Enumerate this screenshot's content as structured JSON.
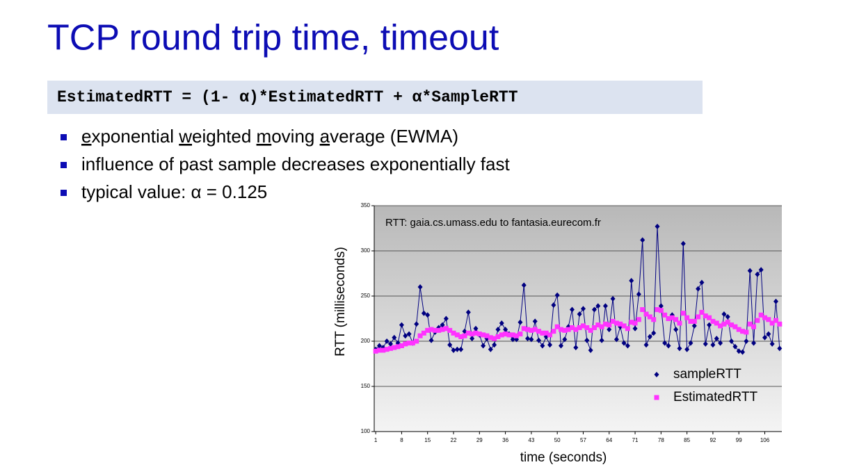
{
  "slide": {
    "title": "TCP round trip time, timeout",
    "formula": "EstimatedRTT = (1- α)*EstimatedRTT + α*SampleRTT",
    "bullets": [
      {
        "parts": [
          "e",
          "xponential ",
          "w",
          "eighted ",
          "m",
          "oving ",
          "a",
          "verage (EWMA)"
        ]
      },
      {
        "parts": [
          "influence of past sample decreases exponentially fast"
        ]
      },
      {
        "parts": [
          "typical value: α = 0.125"
        ]
      }
    ]
  },
  "chart_data": {
    "type": "line",
    "annotation": "RTT: gaia.cs.umass.edu to fantasia.eurecom.fr",
    "x_label": "time (seconds)",
    "y_label": "RTT (milliseconds)",
    "x": [
      1,
      2,
      3,
      4,
      5,
      6,
      7,
      8,
      9,
      10,
      11,
      12,
      13,
      14,
      15,
      16,
      17,
      18,
      19,
      20,
      21,
      22,
      23,
      24,
      25,
      26,
      27,
      28,
      29,
      30,
      31,
      32,
      33,
      34,
      35,
      36,
      37,
      38,
      39,
      40,
      41,
      42,
      43,
      44,
      45,
      46,
      47,
      48,
      49,
      50,
      51,
      52,
      53,
      54,
      55,
      56,
      57,
      58,
      59,
      60,
      61,
      62,
      63,
      64,
      65,
      66,
      67,
      68,
      69,
      70,
      71,
      72,
      73,
      74,
      75,
      76,
      77,
      78,
      79,
      80,
      81,
      82,
      83,
      84,
      85,
      86,
      87,
      88,
      89,
      90,
      91,
      92,
      93,
      94,
      95,
      96,
      97,
      98,
      99,
      100,
      101,
      102,
      103,
      104,
      105,
      106,
      107,
      108,
      109,
      110
    ],
    "xlim": [
      0.6,
      110.6
    ],
    "xticks": [
      1,
      8,
      15,
      22,
      29,
      36,
      43,
      50,
      57,
      64,
      71,
      78,
      85,
      92,
      99,
      106
    ],
    "ylim": [
      100,
      350
    ],
    "yticks": [
      100,
      150,
      200,
      250,
      300,
      350
    ],
    "grid": true,
    "legend": "lower right",
    "series": [
      {
        "name": "sampleRTT",
        "color": "#000080",
        "marker": "diamond",
        "values": [
          191,
          195,
          193,
          200,
          197,
          204,
          198,
          218,
          206,
          208,
          198,
          219,
          260,
          231,
          229,
          201,
          210,
          215,
          218,
          225,
          196,
          190,
          191,
          191,
          211,
          232,
          203,
          214,
          207,
          195,
          203,
          191,
          196,
          213,
          220,
          213,
          208,
          202,
          202,
          221,
          262,
          203,
          202,
          222,
          201,
          195,
          205,
          196,
          240,
          251,
          195,
          202,
          216,
          235,
          193,
          230,
          236,
          201,
          190,
          235,
          239,
          201,
          239,
          213,
          247,
          202,
          216,
          198,
          195,
          267,
          214,
          252,
          312,
          196,
          205,
          209,
          327,
          239,
          198,
          195,
          229,
          213,
          192,
          308,
          191,
          198,
          217,
          258,
          265,
          197,
          218,
          196,
          203,
          198,
          230,
          227,
          200,
          194,
          189,
          188,
          200,
          278,
          198,
          274,
          279,
          204,
          208,
          197,
          244,
          192
        ]
      },
      {
        "name": "EstimatedRTT",
        "color": "#ff33ff",
        "marker": "square",
        "values": [
          189,
          190,
          190,
          191,
          192,
          193,
          194,
          195,
          197,
          198,
          198,
          200,
          206,
          209,
          212,
          213,
          212,
          212,
          213,
          214,
          212,
          209,
          207,
          205,
          206,
          209,
          208,
          209,
          208,
          207,
          206,
          204,
          203,
          205,
          207,
          208,
          207,
          207,
          206,
          208,
          214,
          213,
          212,
          213,
          211,
          209,
          209,
          207,
          211,
          216,
          213,
          212,
          213,
          215,
          213,
          215,
          217,
          215,
          212,
          215,
          218,
          216,
          219,
          218,
          222,
          220,
          219,
          217,
          214,
          221,
          220,
          224,
          235,
          230,
          227,
          224,
          235,
          234,
          229,
          225,
          226,
          224,
          220,
          231,
          226,
          222,
          222,
          227,
          232,
          228,
          226,
          222,
          220,
          217,
          219,
          221,
          218,
          216,
          213,
          211,
          210,
          219,
          216,
          223,
          229,
          226,
          224,
          220,
          223,
          219
        ]
      }
    ]
  }
}
